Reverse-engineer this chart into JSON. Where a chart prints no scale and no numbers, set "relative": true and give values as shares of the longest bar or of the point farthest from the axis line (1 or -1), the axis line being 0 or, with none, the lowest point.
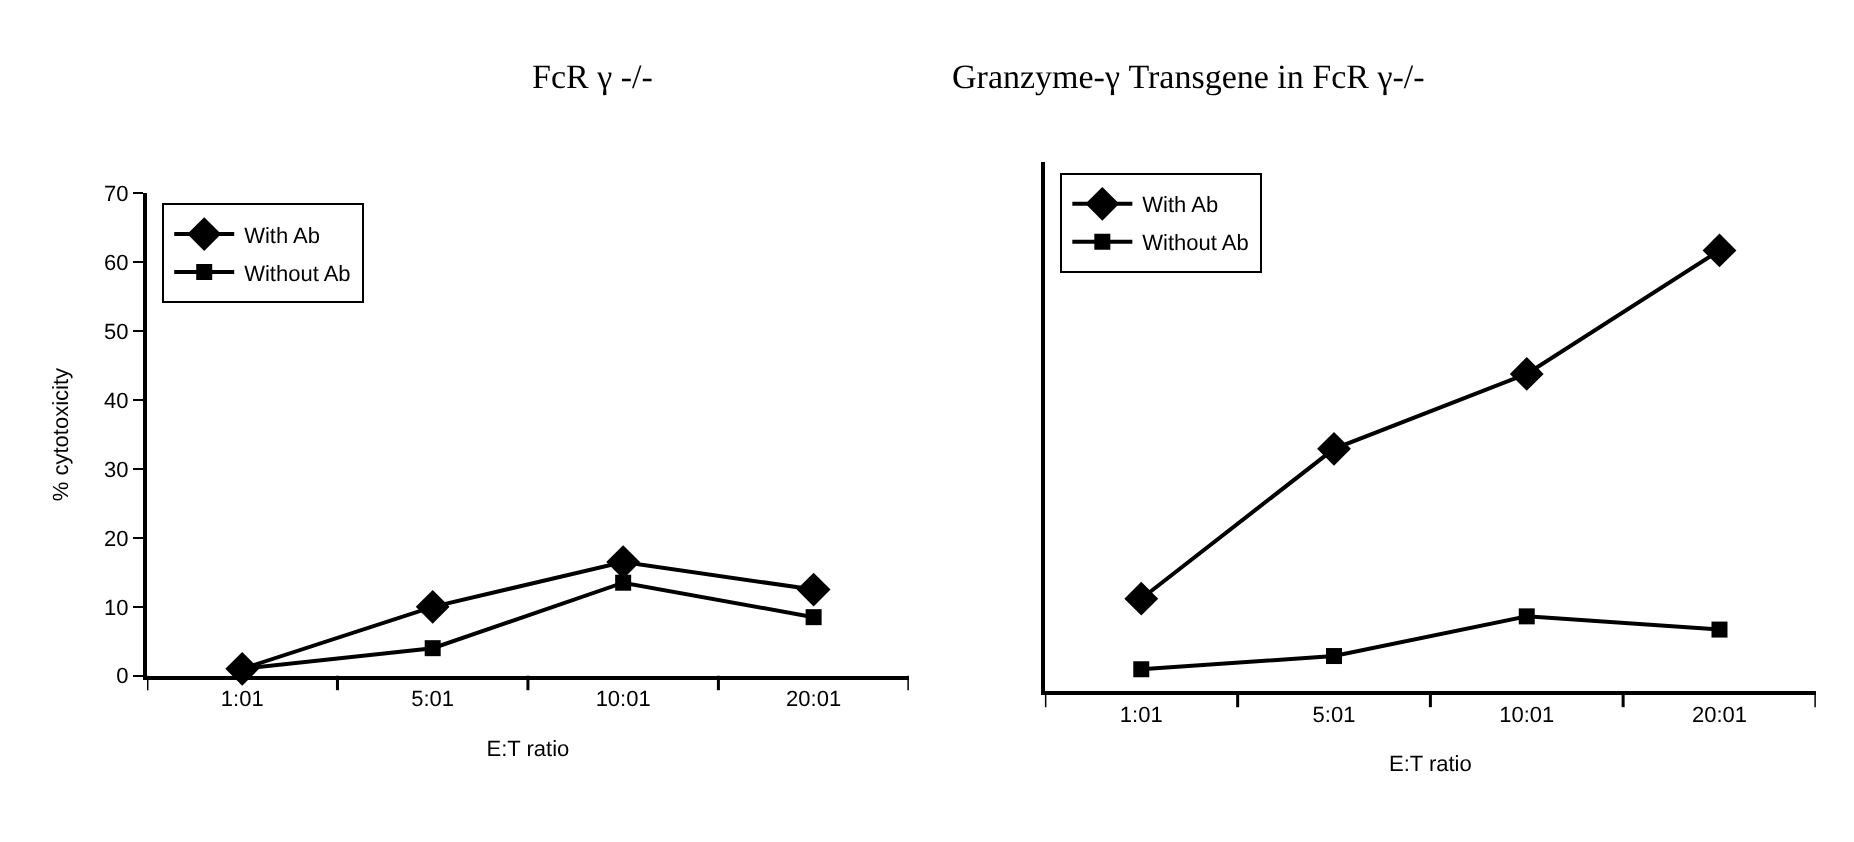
{
  "chart_data": [
    {
      "type": "line",
      "title": "FcR γ -/-",
      "xlabel": "E:T ratio",
      "ylabel": "% cytotoxicity",
      "categories": [
        "1:01",
        "5:01",
        "10:01",
        "20:01"
      ],
      "series": [
        {
          "name": "With Ab",
          "color": "#000000",
          "marker": "diamond",
          "values": [
            1,
            10,
            16.5,
            12.5
          ]
        },
        {
          "name": "Without Ab",
          "color": "#000000",
          "marker": "square",
          "values": [
            1,
            4,
            13.5,
            8.5
          ]
        }
      ],
      "ylim": [
        0,
        70
      ],
      "yticks": [
        0,
        10,
        20,
        30,
        40,
        50,
        60,
        70
      ],
      "legend": "top left",
      "line_style": "solid"
    },
    {
      "type": "line",
      "title": "Granzyme-γ Transgene in FcR γ-/-",
      "xlabel": "E:T ratio",
      "categories": [
        "1:01",
        "5:01",
        "10:01",
        "20:01"
      ],
      "series": [
        {
          "name": "With Ab",
          "color": "#000000",
          "marker": "diamond",
          "values": [
            0.21,
            0.55,
            0.72,
            1
          ]
        },
        {
          "name": "Without Ab",
          "color": "#000000",
          "marker": "square",
          "values": [
            0.05,
            0.08,
            0.17,
            0.14
          ]
        }
      ],
      "relative": true,
      "tick_labels": "x",
      "legend": "top left",
      "line_style": "solid"
    }
  ]
}
